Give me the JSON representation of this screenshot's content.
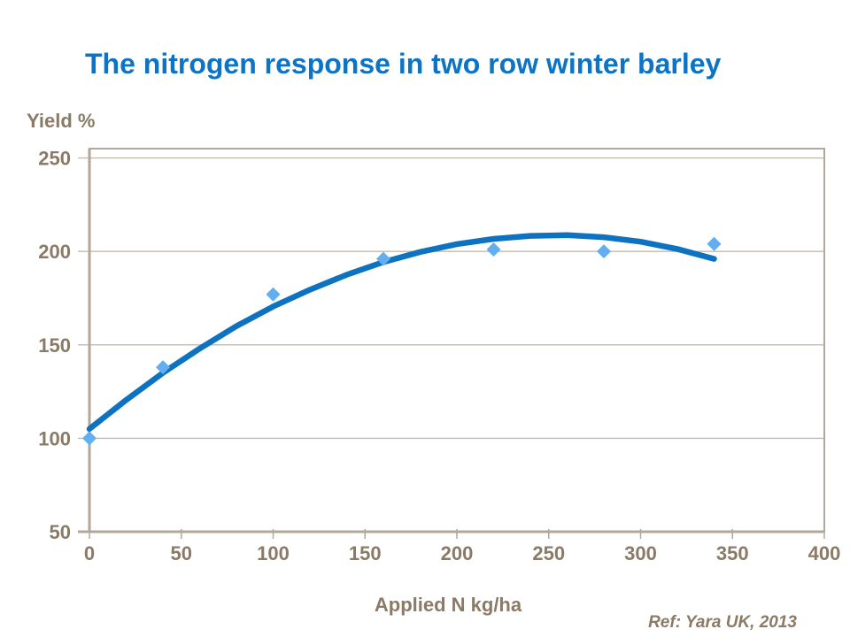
{
  "title_block": {
    "text": "The nitrogen response in two row winter barley"
  },
  "ref_note": "Ref: Yara UK, 2013",
  "chart_data": {
    "type": "scatter",
    "title": "The nitrogen response in two row winter barley",
    "xlabel": "Applied N kg/ha",
    "ylabel": "Yield %",
    "xlim": [
      0,
      400
    ],
    "ylim": [
      50,
      255
    ],
    "x_ticks": [
      0,
      50,
      100,
      150,
      200,
      250,
      300,
      350,
      400
    ],
    "y_ticks": [
      50,
      100,
      150,
      200,
      250
    ],
    "grid": "horizontal-only",
    "legend": "none",
    "series": [
      {
        "name": "observed-yield-points",
        "type": "scatter",
        "marker": "diamond",
        "data": [
          [
            0,
            100
          ],
          [
            40,
            138
          ],
          [
            100,
            177
          ],
          [
            160,
            196
          ],
          [
            220,
            201
          ],
          [
            280,
            200
          ],
          [
            340,
            204
          ]
        ]
      },
      {
        "name": "fitted-response-curve",
        "type": "line",
        "data": [
          [
            0,
            105
          ],
          [
            20,
            120.5
          ],
          [
            40,
            135
          ],
          [
            60,
            148
          ],
          [
            80,
            160
          ],
          [
            100,
            170.5
          ],
          [
            120,
            179.5
          ],
          [
            140,
            187.5
          ],
          [
            160,
            194.3
          ],
          [
            180,
            199.7
          ],
          [
            200,
            203.9
          ],
          [
            220,
            206.7
          ],
          [
            240,
            208.3
          ],
          [
            260,
            208.7
          ],
          [
            280,
            207.6
          ],
          [
            300,
            205.2
          ],
          [
            320,
            201.3
          ],
          [
            340,
            196
          ]
        ]
      }
    ],
    "colors": {
      "title": "#0d73c4",
      "curve": "#0d72c0",
      "marker": "#61aff0",
      "axis_text": "#8a7a66",
      "axis_line": "#b2a79a",
      "gridline": "#c3b9ab",
      "background": "#ffffff"
    }
  }
}
